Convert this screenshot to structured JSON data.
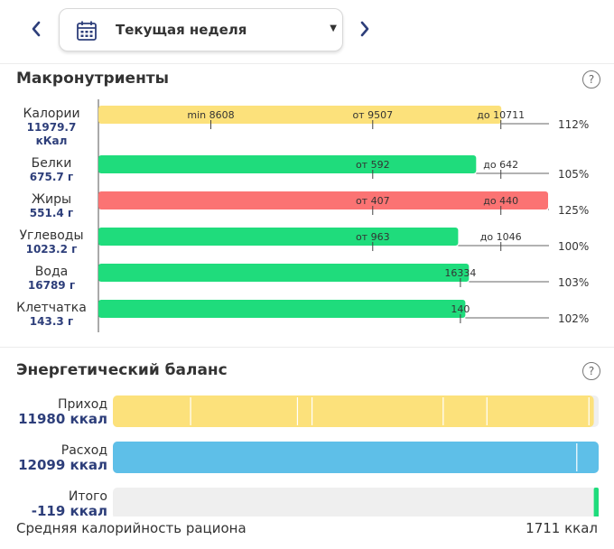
{
  "header": {
    "period_label": "Текущая неделя",
    "prev_icon": "chevron-left-icon",
    "next_icon": "chevron-right-icon",
    "calendar_icon": "calendar-icon",
    "dropdown_icon": "caret-down-icon"
  },
  "macros": {
    "title": "Макронутриенты",
    "help_label": "?"
  },
  "balance": {
    "title": "Энергетический баланс",
    "help_label": "?",
    "avg_label": "Средняя калорийность рациона",
    "avg_value": "1711 ккал"
  },
  "colors": {
    "yellow": "#fce17b",
    "green": "#1fdc7c",
    "red": "#fb7373",
    "blue": "#5ebfe8",
    "track": "#efefef",
    "value_text": "#2d3e7a"
  },
  "chart_data": [
    {
      "type": "bar",
      "orientation": "horizontal",
      "rows": [
        {
          "name": "Калории",
          "amount": "11979.7",
          "unit_line": "кКал",
          "percent": 112,
          "percent_label": "112%",
          "color": "yellow",
          "markers": [
            {
              "label": "min 8608",
              "value": 0.25
            },
            {
              "label": "от 9507",
              "value": 0.61
            },
            {
              "label": "до 10711",
              "value": 0.895
            }
          ]
        },
        {
          "name": "Белки",
          "amount": "675.7 г",
          "percent": 105,
          "percent_label": "105%",
          "color": "green",
          "markers": [
            {
              "label": "от 592",
              "value": 0.61
            },
            {
              "label": "до 642",
              "value": 0.895
            }
          ]
        },
        {
          "name": "Жиры",
          "amount": "551.4 г",
          "percent": 125,
          "percent_label": "125%",
          "color": "red",
          "markers": [
            {
              "label": "от 407",
              "value": 0.61
            },
            {
              "label": "до 440",
              "value": 0.895
            }
          ]
        },
        {
          "name": "Углеводы",
          "amount": "1023.2 г",
          "percent": 100,
          "percent_label": "100%",
          "color": "green",
          "markers": [
            {
              "label": "от 963",
              "value": 0.61
            },
            {
              "label": "до 1046",
              "value": 0.895
            }
          ]
        },
        {
          "name": "Вода",
          "amount": "16789 г",
          "percent": 103,
          "percent_label": "103%",
          "color": "green",
          "markers": [
            {
              "label": "16334",
              "value": 0.805
            }
          ]
        },
        {
          "name": "Клетчатка",
          "amount": "143.3 г",
          "percent": 102,
          "percent_label": "102%",
          "color": "green",
          "markers": [
            {
              "label": "140",
              "value": 0.805
            }
          ]
        }
      ]
    },
    {
      "type": "bar",
      "orientation": "horizontal",
      "rows": [
        {
          "name": "Приход",
          "amount": "11980 ккал",
          "fill": 0.99,
          "color": "yellow",
          "segment_breaks": [
            0.16,
            0.38,
            0.41,
            0.68,
            0.77,
            0.98
          ]
        },
        {
          "name": "Расход",
          "amount": "12099 ккал",
          "fill": 1.0,
          "color": "blue",
          "segment_breaks": [
            0.955
          ]
        },
        {
          "name": "Итого",
          "amount": "-119 ккал",
          "fill": 0.01,
          "color": "green",
          "segment_breaks": []
        }
      ]
    }
  ]
}
